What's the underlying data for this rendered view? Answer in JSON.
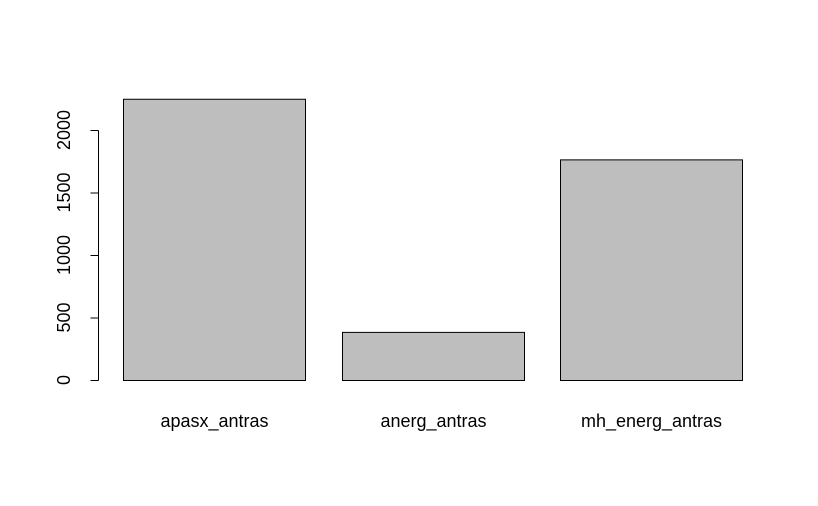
{
  "chart_data": {
    "type": "bar",
    "title": "",
    "xlabel": "",
    "ylabel": "",
    "categories": [
      "apasx_antras",
      "anerg_antras",
      "mh_energ_antras"
    ],
    "values": [
      2250,
      385,
      1765
    ],
    "ylim": [
      0,
      2250
    ],
    "yticks": [
      0,
      500,
      1000,
      1500,
      2000
    ],
    "ytick_labels": [
      "0",
      "500",
      "1000",
      "1500",
      "2000"
    ],
    "bar_color": "#bebebe",
    "border_color": "#000000",
    "grid": false,
    "legend": "none"
  }
}
